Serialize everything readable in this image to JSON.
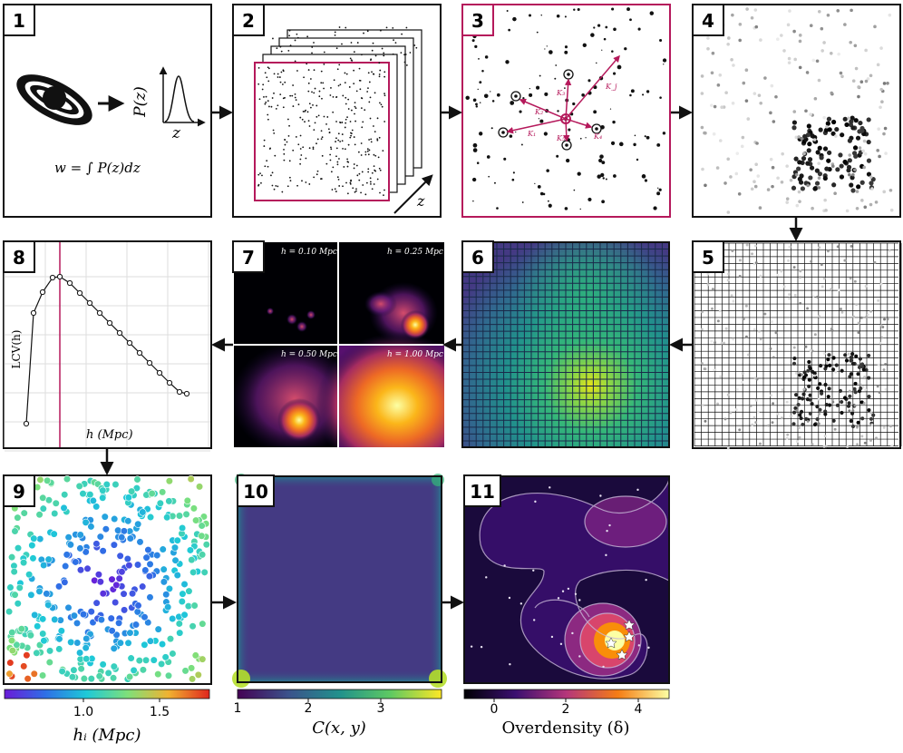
{
  "panels": [
    {
      "id": "1",
      "label": "1"
    },
    {
      "id": "2",
      "label": "2"
    },
    {
      "id": "3",
      "label": "3"
    },
    {
      "id": "4",
      "label": "4"
    },
    {
      "id": "5",
      "label": "5"
    },
    {
      "id": "6",
      "label": "6"
    },
    {
      "id": "7",
      "label": "7"
    },
    {
      "id": "8",
      "label": "8"
    },
    {
      "id": "9",
      "label": "9"
    },
    {
      "id": "10",
      "label": "10"
    },
    {
      "id": "11",
      "label": "11"
    }
  ],
  "panel1": {
    "pz_label": "P(z)",
    "z_label": "z",
    "formula": "w = ∫ P(z)dz"
  },
  "panel2": {
    "z_label": "z"
  },
  "panel3": {
    "k_labels": [
      "K₁",
      "K₂",
      "K₃",
      "K₄",
      "K₅",
      "K_j"
    ]
  },
  "panel7": {
    "h_labels": [
      "h = 0.10 Mpc",
      "h = 0.25 Mpc",
      "h = 0.50 Mpc",
      "h = 1.00 Mpc"
    ]
  },
  "panel8": {
    "ylabel": "LCV(h)",
    "xlabel": "h (Mpc)"
  },
  "colorbars": {
    "cb9": {
      "ticks": [
        "1.0",
        "1.5"
      ],
      "label": "hᵢ (Mpc)"
    },
    "cb10": {
      "ticks": [
        "1",
        "2",
        "3"
      ],
      "label": "C(x, y)"
    },
    "cb11": {
      "ticks": [
        "0",
        "2",
        "4"
      ],
      "label": "Overdensity (δ)"
    }
  },
  "colors": {
    "accent": "#b5195b",
    "frame": "#111111"
  }
}
